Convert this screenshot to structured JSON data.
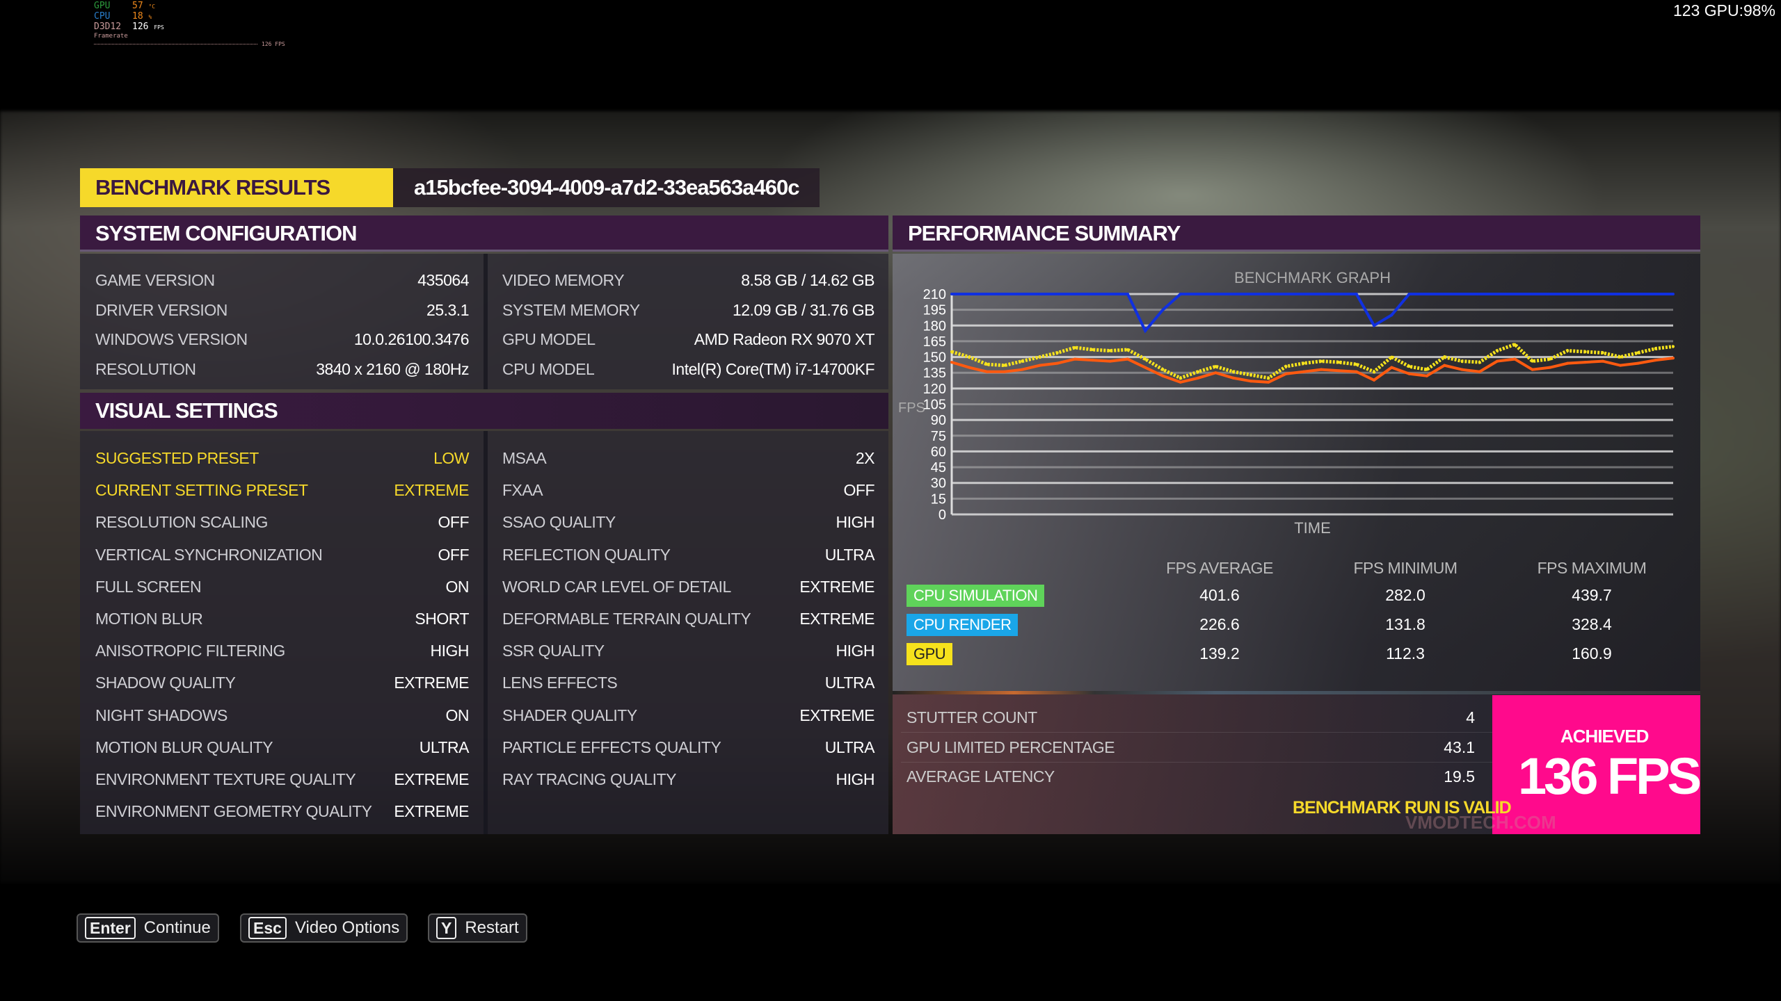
{
  "overlay": {
    "gpu_label": "GPU",
    "gpu_value": "57",
    "gpu_unit": "°C",
    "cpu_label": "CPU",
    "cpu_value": "18",
    "cpu_unit": "%",
    "api_label": "D3D12",
    "fps_value": "126",
    "fps_unit": "FPS",
    "framerate_label": "Framerate",
    "graph_fps": "126 FPS",
    "top_right": "123 GPU:98%"
  },
  "header": {
    "title": "BENCHMARK RESULTS",
    "run_id": "a15bcfee-3094-4009-a7d2-33ea563a460c"
  },
  "system": {
    "title": "SYSTEM CONFIGURATION",
    "left": [
      {
        "label": "GAME VERSION",
        "value": "435064"
      },
      {
        "label": "DRIVER VERSION",
        "value": "25.3.1"
      },
      {
        "label": "WINDOWS VERSION",
        "value": "10.0.26100.3476"
      },
      {
        "label": "RESOLUTION",
        "value": "3840 x 2160 @ 180Hz"
      }
    ],
    "right": [
      {
        "label": "VIDEO MEMORY",
        "value": "8.58 GB / 14.62 GB"
      },
      {
        "label": "SYSTEM MEMORY",
        "value": "12.09 GB / 31.76 GB"
      },
      {
        "label": "GPU MODEL",
        "value": "AMD Radeon RX 9070 XT"
      },
      {
        "label": "CPU MODEL",
        "value": "Intel(R) Core(TM) i7-14700KF"
      }
    ]
  },
  "visual": {
    "title": "VISUAL SETTINGS",
    "left": [
      {
        "label": "SUGGESTED PRESET",
        "value": "LOW",
        "hl": true
      },
      {
        "label": "CURRENT SETTING PRESET",
        "value": "EXTREME",
        "hl": true
      },
      {
        "label": "RESOLUTION SCALING",
        "value": "OFF"
      },
      {
        "label": "VERTICAL SYNCHRONIZATION",
        "value": "OFF"
      },
      {
        "label": "FULL SCREEN",
        "value": "ON"
      },
      {
        "label": "MOTION BLUR",
        "value": "SHORT"
      },
      {
        "label": "ANISOTROPIC FILTERING",
        "value": "HIGH"
      },
      {
        "label": "SHADOW QUALITY",
        "value": "EXTREME"
      },
      {
        "label": "NIGHT SHADOWS",
        "value": "ON"
      },
      {
        "label": "MOTION BLUR QUALITY",
        "value": "ULTRA"
      },
      {
        "label": "ENVIRONMENT TEXTURE QUALITY",
        "value": "EXTREME"
      },
      {
        "label": "ENVIRONMENT GEOMETRY QUALITY",
        "value": "EXTREME"
      }
    ],
    "right": [
      {
        "label": "MSAA",
        "value": "2X"
      },
      {
        "label": "FXAA",
        "value": "OFF"
      },
      {
        "label": "SSAO QUALITY",
        "value": "HIGH"
      },
      {
        "label": "REFLECTION QUALITY",
        "value": "ULTRA"
      },
      {
        "label": "WORLD CAR LEVEL OF DETAIL",
        "value": "EXTREME"
      },
      {
        "label": "DEFORMABLE TERRAIN QUALITY",
        "value": "EXTREME"
      },
      {
        "label": "SSR QUALITY",
        "value": "HIGH"
      },
      {
        "label": "LENS EFFECTS",
        "value": "ULTRA"
      },
      {
        "label": "SHADER QUALITY",
        "value": "EXTREME"
      },
      {
        "label": "PARTICLE EFFECTS QUALITY",
        "value": "ULTRA"
      },
      {
        "label": "RAY TRACING QUALITY",
        "value": "HIGH"
      }
    ]
  },
  "performance": {
    "title": "PERFORMANCE SUMMARY",
    "columns": [
      "FPS AVERAGE",
      "FPS MINIMUM",
      "FPS MAXIMUM"
    ],
    "rows": [
      {
        "label": "CPU SIMULATION",
        "color": "#5fd35a",
        "values": [
          "401.6",
          "282.0",
          "439.7"
        ]
      },
      {
        "label": "CPU RENDER",
        "color": "#1aa6e8",
        "values": [
          "226.6",
          "131.8",
          "328.4"
        ]
      },
      {
        "label": "GPU",
        "color": "#f6e21c",
        "values": [
          "139.2",
          "112.3",
          "160.9"
        ]
      }
    ],
    "stats": [
      {
        "label": "STUTTER COUNT",
        "value": "4"
      },
      {
        "label": "GPU LIMITED PERCENTAGE",
        "value": "43.1"
      },
      {
        "label": "AVERAGE LATENCY",
        "value": "19.5"
      }
    ],
    "valid": "BENCHMARK RUN IS VALID",
    "achieved_label": "ACHIEVED",
    "achieved_value": "136 FPS",
    "accent": "#ff0a8c",
    "watermark": "VMODTECH.COM"
  },
  "chart_data": {
    "type": "line",
    "title": "BENCHMARK GRAPH",
    "xlabel": "TIME",
    "ylabel": "FPS",
    "ylim": [
      0,
      210
    ],
    "yticks": [
      210,
      195,
      180,
      165,
      150,
      135,
      120,
      105,
      90,
      75,
      60,
      45,
      30,
      15,
      0
    ],
    "series": [
      {
        "color": "#f6e21c",
        "values": [
          155,
          150,
          143,
          142,
          146,
          150,
          154,
          159,
          157,
          156,
          157,
          148,
          138,
          130,
          136,
          141,
          136,
          133,
          130,
          141,
          144,
          146,
          145,
          143,
          136,
          150,
          141,
          138,
          150,
          146,
          145,
          156,
          162,
          146,
          148,
          156,
          155,
          154,
          150,
          154,
          158,
          160
        ]
      },
      {
        "color": "#ff5a10",
        "values": [
          145,
          140,
          136,
          136,
          138,
          142,
          144,
          148,
          147,
          146,
          148,
          140,
          132,
          126,
          130,
          135,
          130,
          127,
          126,
          134,
          136,
          138,
          137,
          136,
          128,
          140,
          134,
          132,
          142,
          138,
          136,
          146,
          148,
          138,
          140,
          144,
          145,
          146,
          142,
          144,
          147,
          149
        ]
      },
      {
        "color": "#1030e0",
        "values": [
          210,
          210,
          210,
          210,
          210,
          210,
          210,
          210,
          210,
          210,
          210,
          175,
          195,
          210,
          210,
          210,
          210,
          210,
          210,
          210,
          210,
          210,
          210,
          210,
          180,
          190,
          210,
          210,
          210,
          210,
          210,
          210,
          210,
          210,
          210,
          210,
          210,
          210,
          210,
          210,
          210,
          210
        ]
      }
    ]
  },
  "footer": {
    "buttons": [
      {
        "key": "Enter",
        "label": "Continue"
      },
      {
        "key": "Esc",
        "label": "Video Options"
      },
      {
        "key": "Y",
        "label": "Restart"
      }
    ]
  }
}
